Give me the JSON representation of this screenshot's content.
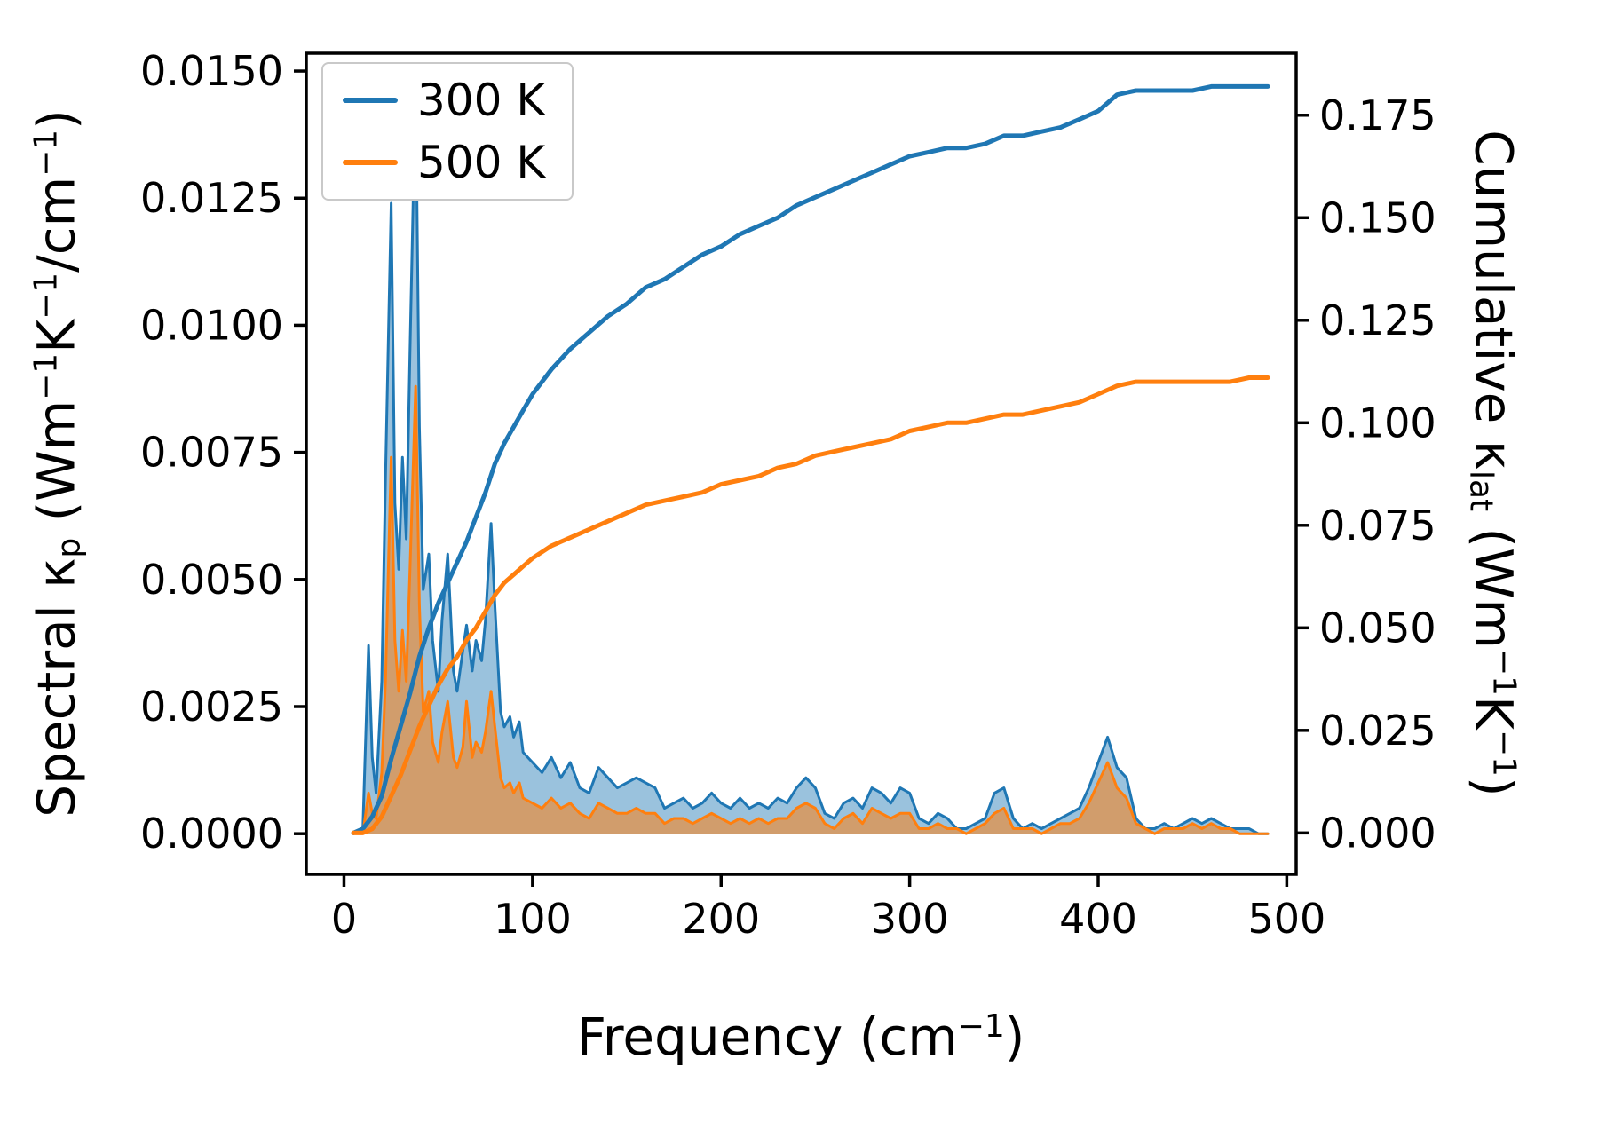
{
  "figure": {
    "background": "#ffffff"
  },
  "axes": {
    "xlabel_parts": [
      {
        "t": "Frequency (cm"
      },
      {
        "t": "−1",
        "sup": true
      },
      {
        "t": ")"
      }
    ],
    "ylabel_left_parts": [
      {
        "t": "Spectral κ"
      },
      {
        "t": "p",
        "sub": true
      },
      {
        "t": " (Wm"
      },
      {
        "t": "−1",
        "sup": true
      },
      {
        "t": "K"
      },
      {
        "t": "−1",
        "sup": true
      },
      {
        "t": "/cm"
      },
      {
        "t": "−1",
        "sup": true
      },
      {
        "t": ")"
      }
    ],
    "ylabel_right_parts": [
      {
        "t": "Cumulative κ"
      },
      {
        "t": "lat",
        "sub": true
      },
      {
        "t": " (Wm"
      },
      {
        "t": "−1",
        "sup": true
      },
      {
        "t": "K"
      },
      {
        "t": "−1",
        "sup": true
      },
      {
        "t": ")"
      }
    ]
  },
  "chart_data": {
    "type": "line",
    "title": "",
    "xlabel": "Frequency (cm⁻¹)",
    "ylabel_left": "Spectral κₚ (Wm⁻¹K⁻¹/cm⁻¹)",
    "ylabel_right": "Cumulative κₗₐₜ (Wm⁻¹K⁻¹)",
    "grid": false,
    "xlim": [
      -20,
      505
    ],
    "ylim_left": [
      -0.0008,
      0.01535
    ],
    "ylim_right": [
      -0.0101,
      0.1901
    ],
    "x_ticks": [
      {
        "value": 0,
        "label": "0"
      },
      {
        "value": 100,
        "label": "100"
      },
      {
        "value": 200,
        "label": "200"
      },
      {
        "value": 300,
        "label": "300"
      },
      {
        "value": 400,
        "label": "400"
      },
      {
        "value": 500,
        "label": "500"
      }
    ],
    "y_ticks_left": [
      {
        "value": 0.0,
        "label": "0.0000"
      },
      {
        "value": 0.0025,
        "label": "0.0025"
      },
      {
        "value": 0.005,
        "label": "0.0050"
      },
      {
        "value": 0.0075,
        "label": "0.0075"
      },
      {
        "value": 0.01,
        "label": "0.0100"
      },
      {
        "value": 0.0125,
        "label": "0.0125"
      },
      {
        "value": 0.015,
        "label": "0.0150"
      }
    ],
    "y_ticks_right": [
      {
        "value": 0.0,
        "label": "0.000"
      },
      {
        "value": 0.025,
        "label": "0.025"
      },
      {
        "value": 0.05,
        "label": "0.050"
      },
      {
        "value": 0.075,
        "label": "0.075"
      },
      {
        "value": 0.1,
        "label": "0.100"
      },
      {
        "value": 0.125,
        "label": "0.125"
      },
      {
        "value": 0.15,
        "label": "0.150"
      },
      {
        "value": 0.175,
        "label": "0.175"
      }
    ],
    "legend": {
      "position": "upper-left",
      "entries": [
        {
          "label": "300 K",
          "color": "#1f77b4"
        },
        {
          "label": "500 K",
          "color": "#ff7f0e"
        }
      ]
    },
    "series": [
      {
        "name": "300 K spectral",
        "axis": "left",
        "style": "area",
        "color": "#1f77b4",
        "fill_opacity": 0.45,
        "line_width": 3,
        "x": [
          5,
          10,
          13,
          15,
          17,
          20,
          22,
          25,
          27,
          29,
          31,
          33,
          35,
          38,
          40,
          42,
          45,
          47,
          50,
          52,
          55,
          58,
          60,
          63,
          65,
          68,
          70,
          73,
          75,
          78,
          80,
          83,
          85,
          88,
          90,
          93,
          95,
          100,
          105,
          110,
          115,
          120,
          125,
          130,
          135,
          140,
          145,
          150,
          155,
          160,
          165,
          170,
          175,
          180,
          185,
          190,
          195,
          200,
          205,
          210,
          215,
          220,
          225,
          230,
          235,
          240,
          245,
          250,
          255,
          260,
          265,
          270,
          275,
          280,
          285,
          290,
          295,
          300,
          305,
          310,
          315,
          320,
          325,
          330,
          335,
          340,
          345,
          350,
          355,
          360,
          365,
          370,
          375,
          380,
          385,
          390,
          395,
          400,
          405,
          410,
          415,
          420,
          425,
          430,
          435,
          440,
          445,
          450,
          455,
          460,
          465,
          470,
          475,
          480,
          485,
          490
        ],
        "y": [
          0.0,
          0.0001,
          0.0037,
          0.0015,
          0.0008,
          0.003,
          0.007,
          0.0124,
          0.0065,
          0.0052,
          0.0074,
          0.0058,
          0.0095,
          0.0148,
          0.008,
          0.0048,
          0.0055,
          0.0038,
          0.0028,
          0.0042,
          0.0055,
          0.0032,
          0.0028,
          0.0036,
          0.0041,
          0.0032,
          0.0038,
          0.0034,
          0.0042,
          0.0061,
          0.0045,
          0.0024,
          0.0021,
          0.0023,
          0.0019,
          0.0022,
          0.0016,
          0.0014,
          0.0012,
          0.0015,
          0.0011,
          0.0014,
          0.0009,
          0.0008,
          0.0013,
          0.0011,
          0.0009,
          0.001,
          0.0011,
          0.001,
          0.0009,
          0.0005,
          0.0006,
          0.0007,
          0.0005,
          0.0006,
          0.0008,
          0.0006,
          0.0005,
          0.0007,
          0.0005,
          0.0006,
          0.0005,
          0.0007,
          0.0006,
          0.0009,
          0.0011,
          0.0009,
          0.0004,
          0.0003,
          0.0006,
          0.0007,
          0.0005,
          0.0009,
          0.0008,
          0.0006,
          0.0009,
          0.0008,
          0.0003,
          0.0002,
          0.0004,
          0.0003,
          0.0001,
          0.0001,
          0.0002,
          0.0003,
          0.0008,
          0.0009,
          0.0003,
          0.0001,
          0.0002,
          0.0001,
          0.0002,
          0.0003,
          0.0004,
          0.0005,
          0.0009,
          0.0014,
          0.0019,
          0.0013,
          0.0011,
          0.0003,
          0.0001,
          0.0001,
          0.0002,
          0.0001,
          0.0002,
          0.0003,
          0.0002,
          0.0003,
          0.0002,
          0.0001,
          0.0001,
          0.0001,
          0.0,
          0.0
        ]
      },
      {
        "name": "500 K spectral",
        "axis": "left",
        "style": "area",
        "color": "#ff7f0e",
        "fill_opacity": 0.55,
        "line_width": 3,
        "x": [
          5,
          10,
          13,
          15,
          17,
          20,
          22,
          25,
          27,
          29,
          31,
          33,
          35,
          38,
          40,
          42,
          45,
          47,
          50,
          52,
          55,
          58,
          60,
          63,
          65,
          68,
          70,
          73,
          75,
          78,
          80,
          83,
          85,
          88,
          90,
          93,
          95,
          100,
          105,
          110,
          115,
          120,
          125,
          130,
          135,
          140,
          145,
          150,
          155,
          160,
          165,
          170,
          175,
          180,
          185,
          190,
          195,
          200,
          205,
          210,
          215,
          220,
          225,
          230,
          235,
          240,
          245,
          250,
          255,
          260,
          265,
          270,
          275,
          280,
          285,
          290,
          295,
          300,
          305,
          310,
          315,
          320,
          325,
          330,
          335,
          340,
          345,
          350,
          355,
          360,
          365,
          370,
          375,
          380,
          385,
          390,
          395,
          400,
          405,
          410,
          415,
          420,
          425,
          430,
          435,
          440,
          445,
          450,
          455,
          460,
          465,
          470,
          475,
          480,
          485,
          490
        ],
        "y": [
          0.0,
          0.0,
          0.0008,
          0.0004,
          0.0003,
          0.0012,
          0.003,
          0.0074,
          0.0038,
          0.0028,
          0.004,
          0.003,
          0.0052,
          0.0088,
          0.0045,
          0.0024,
          0.0028,
          0.0018,
          0.0014,
          0.002,
          0.0026,
          0.0015,
          0.0013,
          0.0017,
          0.0026,
          0.0015,
          0.0018,
          0.0016,
          0.002,
          0.0028,
          0.0021,
          0.0011,
          0.0009,
          0.001,
          0.0008,
          0.001,
          0.0007,
          0.0006,
          0.0005,
          0.0007,
          0.0005,
          0.0006,
          0.0004,
          0.0003,
          0.0006,
          0.0005,
          0.0004,
          0.0004,
          0.0005,
          0.0004,
          0.0004,
          0.0002,
          0.0003,
          0.0003,
          0.0002,
          0.0003,
          0.0004,
          0.0003,
          0.0002,
          0.0003,
          0.0002,
          0.0003,
          0.0002,
          0.0003,
          0.0003,
          0.0005,
          0.0006,
          0.0005,
          0.0002,
          0.0001,
          0.0003,
          0.0004,
          0.0002,
          0.0005,
          0.0004,
          0.0003,
          0.0004,
          0.0004,
          0.0001,
          0.0001,
          0.0002,
          0.0001,
          0.0001,
          0.0,
          0.0001,
          0.0002,
          0.0004,
          0.0005,
          0.0001,
          0.0001,
          0.0001,
          0.0,
          0.0001,
          0.0002,
          0.0002,
          0.0003,
          0.0006,
          0.001,
          0.0014,
          0.0009,
          0.0007,
          0.0002,
          0.0001,
          0.0,
          0.0001,
          0.0001,
          0.0001,
          0.0002,
          0.0001,
          0.0002,
          0.0001,
          0.0001,
          0.0,
          0.0,
          0.0,
          0.0
        ]
      },
      {
        "name": "300 K cumulative",
        "axis": "right",
        "style": "line",
        "color": "#1f77b4",
        "line_width": 5,
        "x": [
          5,
          10,
          15,
          20,
          25,
          30,
          35,
          40,
          45,
          50,
          55,
          60,
          65,
          70,
          75,
          80,
          85,
          90,
          95,
          100,
          110,
          120,
          130,
          140,
          150,
          160,
          170,
          180,
          190,
          200,
          210,
          220,
          230,
          240,
          250,
          260,
          270,
          280,
          290,
          300,
          310,
          320,
          330,
          340,
          350,
          360,
          370,
          380,
          390,
          400,
          410,
          420,
          430,
          440,
          450,
          460,
          470,
          480,
          490
        ],
        "y": [
          0.0,
          0.001,
          0.004,
          0.009,
          0.018,
          0.026,
          0.034,
          0.043,
          0.05,
          0.056,
          0.061,
          0.066,
          0.071,
          0.077,
          0.083,
          0.09,
          0.095,
          0.099,
          0.103,
          0.107,
          0.113,
          0.118,
          0.122,
          0.126,
          0.129,
          0.133,
          0.135,
          0.138,
          0.141,
          0.143,
          0.146,
          0.148,
          0.15,
          0.153,
          0.155,
          0.157,
          0.159,
          0.161,
          0.163,
          0.165,
          0.166,
          0.167,
          0.167,
          0.168,
          0.17,
          0.17,
          0.171,
          0.172,
          0.174,
          0.176,
          0.18,
          0.181,
          0.181,
          0.181,
          0.181,
          0.182,
          0.182,
          0.182,
          0.182
        ]
      },
      {
        "name": "500 K cumulative",
        "axis": "right",
        "style": "line",
        "color": "#ff7f0e",
        "line_width": 5,
        "x": [
          5,
          10,
          15,
          20,
          25,
          30,
          35,
          40,
          45,
          50,
          55,
          60,
          65,
          70,
          75,
          80,
          85,
          90,
          95,
          100,
          110,
          120,
          130,
          140,
          150,
          160,
          170,
          180,
          190,
          200,
          210,
          220,
          230,
          240,
          250,
          260,
          270,
          280,
          290,
          300,
          310,
          320,
          330,
          340,
          350,
          360,
          370,
          380,
          390,
          400,
          410,
          420,
          430,
          440,
          450,
          460,
          470,
          480,
          490
        ],
        "y": [
          0.0,
          0.0,
          0.001,
          0.004,
          0.009,
          0.014,
          0.02,
          0.026,
          0.031,
          0.036,
          0.04,
          0.043,
          0.047,
          0.05,
          0.054,
          0.058,
          0.061,
          0.063,
          0.065,
          0.067,
          0.07,
          0.072,
          0.074,
          0.076,
          0.078,
          0.08,
          0.081,
          0.082,
          0.083,
          0.085,
          0.086,
          0.087,
          0.089,
          0.09,
          0.092,
          0.093,
          0.094,
          0.095,
          0.096,
          0.098,
          0.099,
          0.1,
          0.1,
          0.101,
          0.102,
          0.102,
          0.103,
          0.104,
          0.105,
          0.107,
          0.109,
          0.11,
          0.11,
          0.11,
          0.11,
          0.11,
          0.11,
          0.111,
          0.111
        ]
      }
    ]
  }
}
